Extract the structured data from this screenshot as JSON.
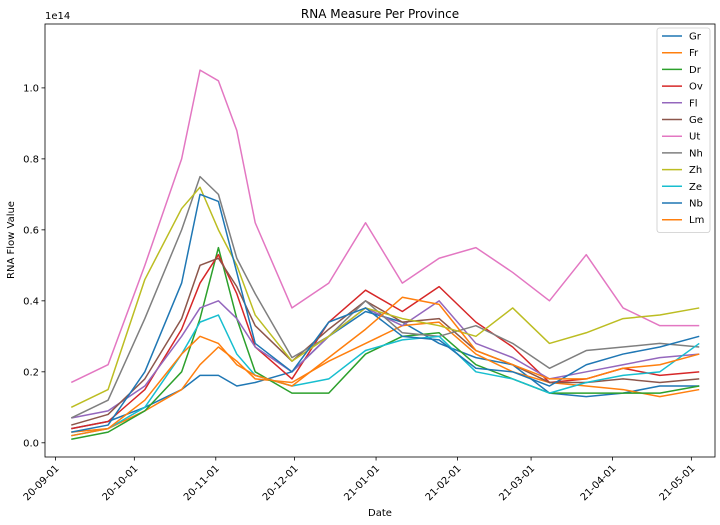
{
  "chart_data": {
    "type": "line",
    "title": "RNA Measure Per Province",
    "xlabel": "Date",
    "ylabel": "RNA Flow Value",
    "y_offset_label": "1e14",
    "x_tick_labels": [
      "20-09-01",
      "20-10-01",
      "20-11-01",
      "20-12-01",
      "21-01-01",
      "21-02-01",
      "21-03-01",
      "21-04-01",
      "21-05-01"
    ],
    "y_tick_labels": [
      "0.0",
      "0.2",
      "0.4",
      "0.6",
      "0.8",
      "1.0"
    ],
    "y_ticks": [
      0.0,
      0.2,
      0.4,
      0.6,
      0.8,
      1.0
    ],
    "xlim": [
      "2020-08-28",
      "2021-05-10"
    ],
    "ylim": [
      -0.04,
      1.18
    ],
    "grid": false,
    "legend_position": "top-right",
    "x": [
      "2020-09-07",
      "2020-09-21",
      "2020-10-05",
      "2020-10-19",
      "2020-10-26",
      "2020-11-02",
      "2020-11-09",
      "2020-11-16",
      "2020-11-30",
      "2020-12-14",
      "2020-12-28",
      "2021-01-11",
      "2021-01-25",
      "2021-02-08",
      "2021-02-22",
      "2021-03-08",
      "2021-03-22",
      "2021-04-05",
      "2021-04-19",
      "2021-05-04"
    ],
    "series": [
      {
        "name": "Gr",
        "color": "#1f77b4",
        "values": [
          0.04,
          0.06,
          0.1,
          0.15,
          0.19,
          0.19,
          0.16,
          0.17,
          0.2,
          0.3,
          0.37,
          0.34,
          0.28,
          0.24,
          0.22,
          0.14,
          0.13,
          0.14,
          0.16,
          0.16
        ]
      },
      {
        "name": "Fr",
        "color": "#ff7f0e",
        "values": [
          0.03,
          0.04,
          0.09,
          0.15,
          0.22,
          0.27,
          0.23,
          0.18,
          0.17,
          0.23,
          0.28,
          0.33,
          0.34,
          0.25,
          0.2,
          0.17,
          0.16,
          0.15,
          0.13,
          0.15
        ]
      },
      {
        "name": "Dr",
        "color": "#2ca02c",
        "values": [
          0.01,
          0.03,
          0.09,
          0.2,
          0.35,
          0.55,
          0.35,
          0.2,
          0.14,
          0.14,
          0.25,
          0.3,
          0.31,
          0.22,
          0.18,
          0.14,
          0.14,
          0.14,
          0.14,
          0.16
        ]
      },
      {
        "name": "Ov",
        "color": "#d62728",
        "values": [
          0.04,
          0.06,
          0.15,
          0.32,
          0.45,
          0.53,
          0.42,
          0.27,
          0.18,
          0.34,
          0.43,
          0.37,
          0.44,
          0.34,
          0.27,
          0.17,
          0.18,
          0.21,
          0.19,
          0.2
        ]
      },
      {
        "name": "Fl",
        "color": "#9467bd",
        "values": [
          0.07,
          0.09,
          0.16,
          0.3,
          0.38,
          0.4,
          0.35,
          0.27,
          0.2,
          0.3,
          0.38,
          0.33,
          0.4,
          0.28,
          0.24,
          0.18,
          0.2,
          0.22,
          0.24,
          0.25
        ]
      },
      {
        "name": "Ge",
        "color": "#8c564b",
        "values": [
          0.05,
          0.08,
          0.18,
          0.35,
          0.5,
          0.52,
          0.44,
          0.33,
          0.23,
          0.32,
          0.4,
          0.34,
          0.35,
          0.26,
          0.22,
          0.17,
          0.17,
          0.18,
          0.17,
          0.18
        ]
      },
      {
        "name": "Ut",
        "color": "#e377c2",
        "values": [
          0.17,
          0.22,
          0.5,
          0.8,
          1.05,
          1.02,
          0.88,
          0.62,
          0.38,
          0.45,
          0.62,
          0.45,
          0.52,
          0.55,
          0.48,
          0.4,
          0.53,
          0.38,
          0.33,
          0.33
        ]
      },
      {
        "name": "Nh",
        "color": "#7f7f7f",
        "values": [
          0.07,
          0.12,
          0.35,
          0.6,
          0.75,
          0.7,
          0.52,
          0.42,
          0.24,
          0.3,
          0.4,
          0.31,
          0.3,
          0.33,
          0.28,
          0.21,
          0.26,
          0.27,
          0.28,
          0.27
        ]
      },
      {
        "name": "Zh",
        "color": "#bcbd22",
        "values": [
          0.1,
          0.15,
          0.46,
          0.66,
          0.72,
          0.6,
          0.5,
          0.36,
          0.23,
          0.3,
          0.38,
          0.35,
          0.33,
          0.3,
          0.38,
          0.28,
          0.31,
          0.35,
          0.36,
          0.38
        ]
      },
      {
        "name": "Ze",
        "color": "#17becf",
        "values": [
          0.02,
          0.04,
          0.1,
          0.25,
          0.34,
          0.36,
          0.25,
          0.19,
          0.16,
          0.18,
          0.26,
          0.29,
          0.3,
          0.2,
          0.18,
          0.14,
          0.17,
          0.19,
          0.2,
          0.28
        ]
      },
      {
        "name": "Nb",
        "color": "#1f77b4",
        "values": [
          0.03,
          0.05,
          0.2,
          0.45,
          0.7,
          0.68,
          0.48,
          0.28,
          0.2,
          0.34,
          0.38,
          0.3,
          0.29,
          0.21,
          0.2,
          0.16,
          0.22,
          0.25,
          0.27,
          0.3
        ]
      },
      {
        "name": "Lm",
        "color": "#ff7f0e",
        "values": [
          0.02,
          0.04,
          0.12,
          0.25,
          0.3,
          0.28,
          0.22,
          0.19,
          0.16,
          0.24,
          0.32,
          0.41,
          0.39,
          0.26,
          0.22,
          0.18,
          0.18,
          0.21,
          0.22,
          0.25
        ]
      }
    ]
  }
}
